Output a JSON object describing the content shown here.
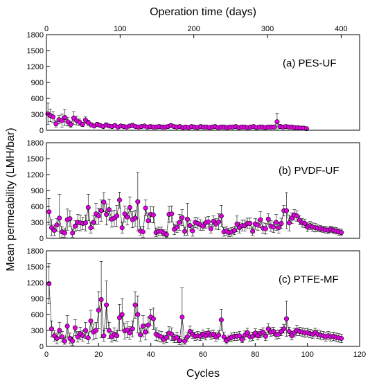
{
  "figure": {
    "top_axis_title": "Operation time (days)",
    "bottom_axis_title": "Cycles",
    "y_axis_title": "Mean permeability (LMH/bar)",
    "top_ticks": [
      "0",
      "100",
      "200",
      "300",
      "400"
    ],
    "bottom_ticks": [
      "0",
      "20",
      "40",
      "60",
      "80",
      "100",
      "120"
    ],
    "y_ticks": [
      "0",
      "300",
      "600",
      "900",
      "1200",
      "1500",
      "1800"
    ]
  },
  "colors": {
    "marker_fill": "#e100e1",
    "marker_edge": "#000000",
    "line": "#000000",
    "axis": "#000000",
    "background": "#ffffff"
  },
  "chart_data": [
    {
      "type": "scatter",
      "label": "(a) PES-UF",
      "xlabel": "Operation time (days)",
      "ylabel": "Mean permeability (LMH/bar)",
      "xlim": [
        0,
        425
      ],
      "ylim": [
        0,
        1800
      ],
      "grid": false,
      "series": [
        {
          "x": [
            2,
            5,
            9,
            13,
            17,
            21,
            25,
            29,
            33,
            37,
            41,
            45,
            49,
            53,
            57,
            61,
            65,
            69,
            73,
            77,
            81,
            85,
            89,
            93,
            97,
            101,
            105,
            109,
            113,
            117,
            121,
            125,
            129,
            133,
            137,
            141,
            145,
            149,
            153,
            157,
            161,
            165,
            169,
            173,
            177,
            181,
            185,
            189,
            193,
            197,
            201,
            205,
            209,
            213,
            217,
            221,
            225,
            229,
            233,
            237,
            241,
            245,
            249,
            253,
            257,
            261,
            265,
            269,
            273,
            277,
            281,
            285,
            289,
            293,
            297,
            301,
            305,
            309,
            313,
            317,
            321,
            325,
            329,
            333,
            337,
            341,
            345,
            349,
            353
          ],
          "y": [
            310,
            280,
            250,
            120,
            200,
            180,
            240,
            160,
            110,
            230,
            180,
            150,
            110,
            190,
            140,
            100,
            80,
            110,
            90,
            70,
            100,
            80,
            70,
            90,
            60,
            80,
            70,
            60,
            80,
            90,
            70,
            60,
            70,
            80,
            60,
            70,
            60,
            60,
            70,
            60,
            60,
            70,
            90,
            70,
            60,
            70,
            50,
            60,
            50,
            70,
            60,
            50,
            70,
            60,
            60,
            50,
            60,
            70,
            50,
            60,
            60,
            50,
            60,
            60,
            70,
            50,
            60,
            60,
            50,
            60,
            70,
            50,
            60,
            60,
            50,
            60,
            60,
            60,
            160,
            70,
            60,
            70,
            60,
            60,
            50,
            50,
            40,
            40,
            30
          ],
          "err": [
            200,
            120,
            100,
            60,
            80,
            120,
            150,
            80,
            60,
            120,
            80,
            60,
            40,
            60,
            50,
            40,
            30,
            40,
            30,
            20,
            40,
            30,
            20,
            30,
            20,
            30,
            30,
            20,
            30,
            40,
            30,
            20,
            20,
            30,
            20,
            20,
            20,
            20,
            30,
            20,
            20,
            30,
            30,
            20,
            20,
            20,
            20,
            20,
            20,
            20,
            20,
            20,
            20,
            20,
            20,
            20,
            20,
            20,
            20,
            20,
            20,
            20,
            20,
            20,
            20,
            20,
            20,
            20,
            20,
            20,
            20,
            20,
            20,
            20,
            20,
            20,
            20,
            20,
            160,
            40,
            20,
            20,
            20,
            20,
            20,
            20,
            20,
            20,
            20
          ]
        }
      ]
    },
    {
      "type": "scatter",
      "label": "(b) PVDF-UF",
      "xlabel": "Cycles",
      "ylabel": "Mean permeability (LMH/bar)",
      "xlim": [
        0,
        120
      ],
      "ylim": [
        0,
        1800
      ],
      "grid": false,
      "series": [
        {
          "x": [
            1,
            2,
            3,
            4,
            5,
            6,
            7,
            8,
            9,
            10,
            11,
            12,
            13,
            14,
            15,
            16,
            17,
            18,
            19,
            20,
            21,
            22,
            23,
            24,
            25,
            26,
            27,
            28,
            29,
            30,
            31,
            32,
            33,
            34,
            35,
            36,
            37,
            38,
            39,
            40,
            41,
            42,
            43,
            44,
            45,
            46,
            47,
            48,
            49,
            50,
            51,
            52,
            53,
            54,
            55,
            56,
            57,
            58,
            59,
            60,
            61,
            62,
            63,
            64,
            65,
            66,
            67,
            68,
            69,
            70,
            71,
            72,
            73,
            74,
            75,
            76,
            77,
            78,
            79,
            80,
            81,
            82,
            83,
            84,
            85,
            86,
            87,
            88,
            89,
            90,
            91,
            92,
            93,
            94,
            95,
            96,
            97,
            98,
            99,
            100,
            101,
            102,
            103,
            104,
            105,
            106,
            107,
            108,
            109,
            110,
            111,
            112,
            113
          ],
          "y": [
            500,
            200,
            150,
            250,
            380,
            120,
            100,
            350,
            370,
            100,
            230,
            300,
            290,
            280,
            290,
            580,
            200,
            300,
            460,
            420,
            520,
            680,
            450,
            540,
            360,
            380,
            420,
            720,
            200,
            460,
            400,
            580,
            350,
            380,
            690,
            140,
            120,
            570,
            330,
            450,
            440,
            110,
            130,
            130,
            100,
            70,
            450,
            460,
            170,
            210,
            300,
            390,
            130,
            360,
            240,
            140,
            300,
            280,
            250,
            230,
            290,
            310,
            180,
            320,
            270,
            310,
            420,
            120,
            140,
            110,
            120,
            150,
            270,
            200,
            240,
            240,
            280,
            280,
            130,
            270,
            250,
            350,
            190,
            180,
            360,
            230,
            210,
            300,
            200,
            280,
            520,
            520,
            290,
            380,
            440,
            420,
            340,
            290,
            280,
            210,
            240,
            210,
            200,
            190,
            180,
            170,
            160,
            150,
            170,
            150,
            140,
            120,
            110
          ],
          "err": [
            250,
            150,
            100,
            120,
            450,
            100,
            80,
            200,
            150,
            80,
            100,
            150,
            150,
            120,
            150,
            250,
            100,
            120,
            200,
            150,
            200,
            180,
            200,
            200,
            150,
            150,
            200,
            150,
            100,
            150,
            150,
            200,
            150,
            150,
            550,
            80,
            100,
            150,
            150,
            150,
            150,
            80,
            80,
            80,
            60,
            50,
            150,
            150,
            100,
            100,
            150,
            150,
            80,
            300,
            100,
            100,
            100,
            100,
            100,
            80,
            100,
            100,
            80,
            100,
            100,
            150,
            200,
            80,
            80,
            80,
            80,
            80,
            150,
            100,
            100,
            100,
            100,
            100,
            80,
            100,
            100,
            150,
            100,
            100,
            100,
            100,
            100,
            150,
            100,
            100,
            100,
            340,
            150,
            100,
            100,
            100,
            80,
            80,
            80,
            80,
            80,
            80,
            80,
            60,
            60,
            60,
            60,
            60,
            60,
            60,
            60,
            60,
            60
          ]
        }
      ]
    },
    {
      "type": "scatter",
      "label": "(c) PTFE-MF",
      "xlabel": "Cycles",
      "ylabel": "Mean permeability (LMH/bar)",
      "xlim": [
        0,
        120
      ],
      "ylim": [
        0,
        1800
      ],
      "grid": false,
      "series": [
        {
          "x": [
            1,
            2,
            3,
            4,
            5,
            6,
            7,
            8,
            9,
            10,
            11,
            12,
            13,
            14,
            15,
            16,
            17,
            18,
            19,
            20,
            21,
            22,
            23,
            24,
            25,
            26,
            27,
            28,
            29,
            30,
            31,
            32,
            33,
            34,
            35,
            36,
            37,
            38,
            39,
            40,
            41,
            42,
            43,
            44,
            45,
            46,
            47,
            48,
            49,
            50,
            51,
            52,
            53,
            54,
            55,
            56,
            57,
            58,
            59,
            60,
            61,
            62,
            63,
            64,
            65,
            66,
            67,
            68,
            69,
            70,
            71,
            72,
            73,
            74,
            75,
            76,
            77,
            78,
            79,
            80,
            81,
            82,
            83,
            84,
            85,
            86,
            87,
            88,
            89,
            90,
            91,
            92,
            93,
            94,
            95,
            96,
            97,
            98,
            99,
            100,
            101,
            102,
            103,
            104,
            105,
            106,
            107,
            108,
            109,
            110,
            111,
            112,
            113
          ],
          "y": [
            1180,
            330,
            200,
            150,
            300,
            180,
            100,
            380,
            150,
            100,
            350,
            180,
            240,
            200,
            300,
            160,
            480,
            270,
            300,
            680,
            880,
            200,
            780,
            300,
            180,
            230,
            200,
            540,
            600,
            290,
            310,
            250,
            330,
            780,
            600,
            220,
            380,
            270,
            400,
            550,
            520,
            230,
            200,
            180,
            130,
            170,
            250,
            230,
            150,
            170,
            110,
            550,
            100,
            180,
            280,
            230,
            190,
            200,
            190,
            230,
            200,
            250,
            210,
            230,
            180,
            210,
            500,
            180,
            110,
            150,
            170,
            190,
            190,
            200,
            130,
            210,
            260,
            180,
            190,
            250,
            200,
            240,
            270,
            190,
            330,
            270,
            280,
            220,
            230,
            280,
            330,
            520,
            280,
            200,
            260,
            300,
            280,
            270,
            250,
            260,
            240,
            230,
            260,
            230,
            210,
            200,
            180,
            200,
            180,
            190,
            170,
            160,
            150
          ],
          "err": [
            380,
            150,
            100,
            100,
            150,
            100,
            60,
            200,
            100,
            80,
            150,
            100,
            120,
            100,
            150,
            100,
            200,
            150,
            150,
            350,
            720,
            100,
            450,
            150,
            100,
            120,
            100,
            250,
            300,
            150,
            150,
            120,
            150,
            250,
            350,
            120,
            200,
            150,
            150,
            150,
            200,
            120,
            100,
            100,
            80,
            100,
            120,
            120,
            80,
            100,
            80,
            550,
            60,
            80,
            100,
            80,
            80,
            80,
            80,
            80,
            80,
            80,
            80,
            80,
            80,
            80,
            200,
            80,
            60,
            60,
            80,
            80,
            80,
            80,
            60,
            80,
            80,
            80,
            80,
            80,
            80,
            80,
            80,
            80,
            100,
            80,
            80,
            80,
            80,
            80,
            80,
            330,
            80,
            80,
            80,
            100,
            80,
            80,
            80,
            80,
            80,
            80,
            80,
            80,
            80,
            80,
            80,
            80,
            80,
            80,
            80,
            80,
            80
          ]
        }
      ]
    }
  ]
}
